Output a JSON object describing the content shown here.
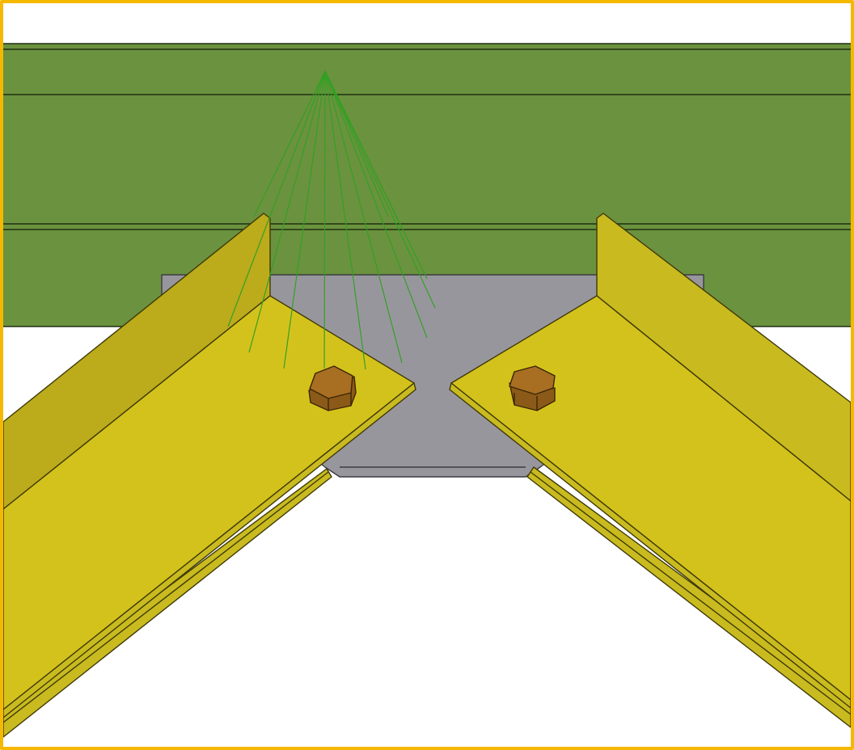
{
  "view": {
    "selection_color": "#f5b800",
    "background": "#ffffff"
  },
  "colors": {
    "beam_face": "#6b923f",
    "beam_edge": "#1f2f12",
    "plate_face": "#98969d",
    "plate_edge": "#3c3b41",
    "angle_top": "#d4c21c",
    "angle_leg": "#bcab1b",
    "angle_side": "#c9bb1f",
    "angle_edge": "#3f3a08",
    "bolt_top": "#a86e22",
    "bolt_side": "#8c5a18",
    "bolt_edge": "#3a2606",
    "weld_lines": "#33a024"
  },
  "icons": {
    "bolt_left": "hex-bolt-icon",
    "bolt_right": "hex-bolt-icon"
  }
}
